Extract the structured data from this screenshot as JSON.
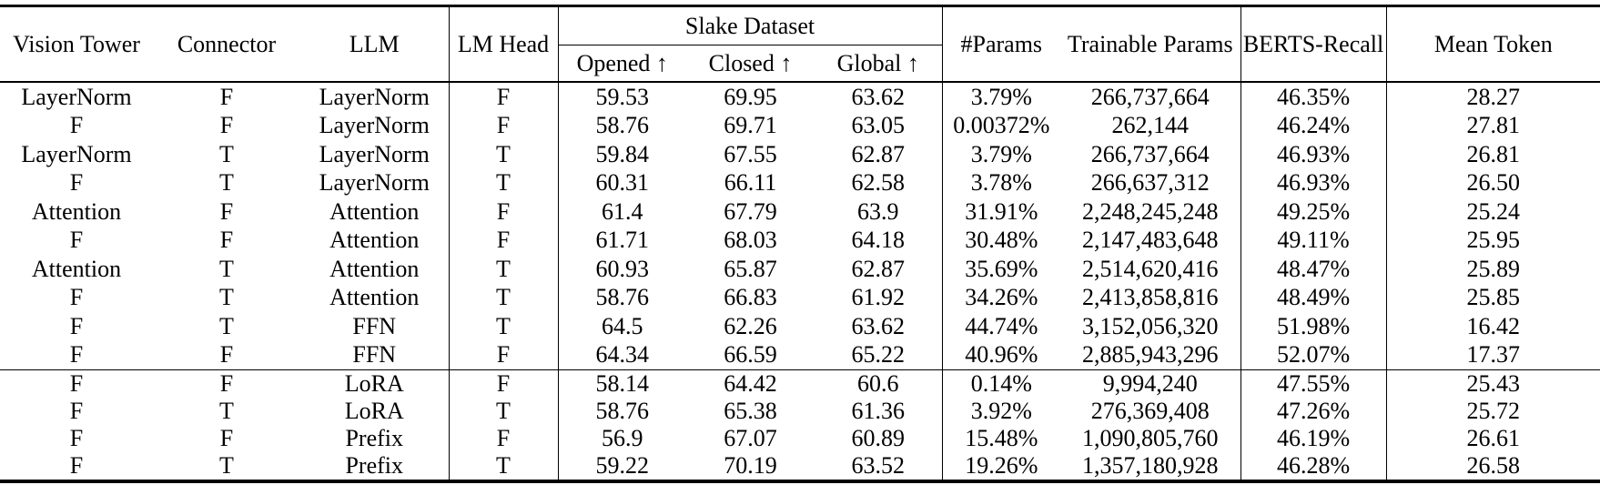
{
  "table": {
    "header": {
      "vision_tower": "Vision Tower",
      "connector": "Connector",
      "llm": "LLM",
      "lm_head": "LM Head",
      "slake_group": "Slake Dataset",
      "opened": "Opened ↑",
      "closed": "Closed ↑",
      "global": "Global ↑",
      "params": "#Params",
      "trainable_params": "Trainable Params",
      "berts_recall": "BERTS-Recall",
      "mean_token": "Mean Token"
    },
    "column_keys": [
      "vision_tower",
      "connector",
      "llm",
      "lm_head",
      "opened",
      "closed",
      "global",
      "params",
      "trainable_params",
      "berts_recall",
      "mean_token"
    ],
    "groups": [
      {
        "rows": [
          {
            "vision_tower": "LayerNorm",
            "connector": "F",
            "llm": "LayerNorm",
            "lm_head": "F",
            "opened": "59.53",
            "closed": "69.95",
            "global": "63.62",
            "params": "3.79%",
            "trainable_params": "266,737,664",
            "berts_recall": "46.35%",
            "mean_token": "28.27",
            "bold": [
              "closed",
              "mean_token"
            ]
          },
          {
            "vision_tower": "F",
            "connector": "F",
            "llm": "LayerNorm",
            "lm_head": "F",
            "opened": "58.76",
            "closed": "69.71",
            "global": "63.05",
            "params": "0.00372%",
            "trainable_params": "262,144",
            "berts_recall": "46.24%",
            "mean_token": "27.81",
            "bold": [
              "trainable_params"
            ]
          },
          {
            "vision_tower": "LayerNorm",
            "connector": "T",
            "llm": "LayerNorm",
            "lm_head": "T",
            "opened": "59.84",
            "closed": "67.55",
            "global": "62.87",
            "params": "3.79%",
            "trainable_params": "266,737,664",
            "berts_recall": "46.93%",
            "mean_token": "26.81",
            "bold": []
          },
          {
            "vision_tower": "F",
            "connector": "T",
            "llm": "LayerNorm",
            "lm_head": "T",
            "opened": "60.31",
            "closed": "66.11",
            "global": "62.58",
            "params": "3.78%",
            "trainable_params": "266,637,312",
            "berts_recall": "46.93%",
            "mean_token": "26.50",
            "bold": []
          },
          {
            "vision_tower": "Attention",
            "connector": "F",
            "llm": "Attention",
            "lm_head": "F",
            "opened": "61.4",
            "closed": "67.79",
            "global": "63.9",
            "params": "31.91%",
            "trainable_params": "2,248,245,248",
            "berts_recall": "49.25%",
            "mean_token": "25.24",
            "bold": []
          },
          {
            "vision_tower": "F",
            "connector": "F",
            "llm": "Attention",
            "lm_head": "F",
            "opened": "61.71",
            "closed": "68.03",
            "global": "64.18",
            "params": "30.48%",
            "trainable_params": "2,147,483,648",
            "berts_recall": "49.11%",
            "mean_token": "25.95",
            "bold": [
              "opened"
            ]
          },
          {
            "vision_tower": "Attention",
            "connector": "T",
            "llm": "Attention",
            "lm_head": "T",
            "opened": "60.93",
            "closed": "65.87",
            "global": "62.87",
            "params": "35.69%",
            "trainable_params": "2,514,620,416",
            "berts_recall": "48.47%",
            "mean_token": "25.89",
            "bold": []
          },
          {
            "vision_tower": "F",
            "connector": "T",
            "llm": "Attention",
            "lm_head": "T",
            "opened": "58.76",
            "closed": "66.83",
            "global": "61.92",
            "params": "34.26%",
            "trainable_params": "2,413,858,816",
            "berts_recall": "48.49%",
            "mean_token": "25.85",
            "bold": []
          },
          {
            "vision_tower": "F",
            "connector": "T",
            "llm": "FFN",
            "lm_head": "T",
            "opened": "64.5",
            "closed": "62.26",
            "global": "63.62",
            "params": "44.74%",
            "trainable_params": "3,152,056,320",
            "berts_recall": "51.98%",
            "mean_token": "16.42",
            "bold": []
          },
          {
            "vision_tower": "F",
            "connector": "F",
            "llm": "FFN",
            "lm_head": "F",
            "opened": "64.34",
            "closed": "66.59",
            "global": "65.22",
            "params": "40.96%",
            "trainable_params": "2,885,943,296",
            "berts_recall": "52.07%",
            "mean_token": "17.37",
            "bold": [
              "opened",
              "global"
            ]
          }
        ]
      },
      {
        "rows": [
          {
            "vision_tower": "F",
            "connector": "F",
            "llm": "LoRA",
            "lm_head": "F",
            "opened": "58.14",
            "closed": "64.42",
            "global": "60.6",
            "params": "0.14%",
            "trainable_params": "9,994,240",
            "berts_recall": "47.55%",
            "mean_token": "25.43",
            "bold": []
          },
          {
            "vision_tower": "F",
            "connector": "T",
            "llm": "LoRA",
            "lm_head": "T",
            "opened": "58.76",
            "closed": "65.38",
            "global": "61.36",
            "params": "3.92%",
            "trainable_params": "276,369,408",
            "berts_recall": "47.26%",
            "mean_token": "25.72",
            "bold": []
          },
          {
            "vision_tower": "F",
            "connector": "F",
            "llm": "Prefix",
            "lm_head": "F",
            "opened": "56.9",
            "closed": "67.07",
            "global": "60.89",
            "params": "15.48%",
            "trainable_params": "1,090,805,760",
            "berts_recall": "46.19%",
            "mean_token": "26.61",
            "bold": []
          },
          {
            "vision_tower": "F",
            "connector": "T",
            "llm": "Prefix",
            "lm_head": "T",
            "opened": "59.22",
            "closed": "70.19",
            "global": "63.52",
            "params": "19.26%",
            "trainable_params": "1,357,180,928",
            "berts_recall": "46.28%",
            "mean_token": "26.58",
            "bold": [
              "closed"
            ]
          }
        ]
      }
    ]
  }
}
